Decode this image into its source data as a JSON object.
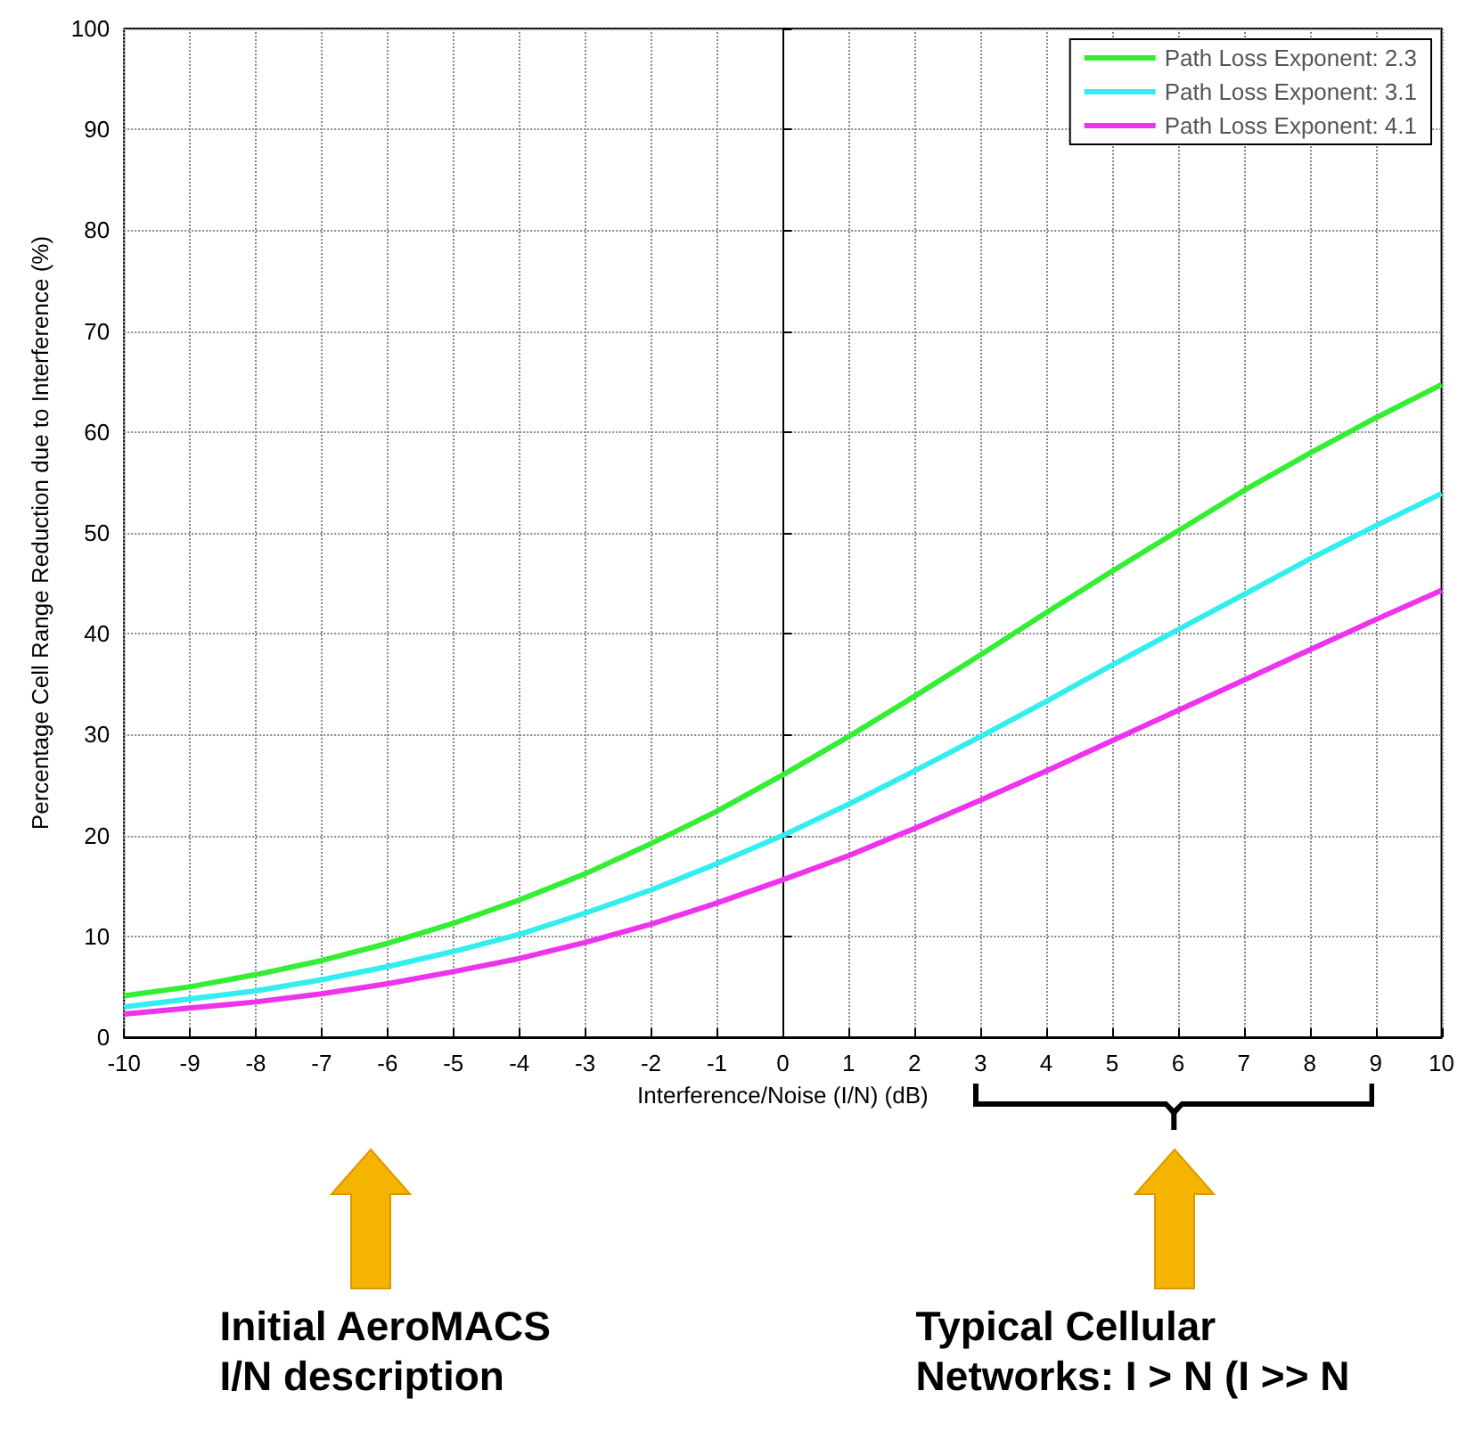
{
  "chart_data": {
    "type": "line",
    "xlabel": "Interference/Noise (I/N) (dB)",
    "ylabel": "Percentage Cell Range Reduction due to Interference (%)",
    "x": [
      -10,
      -9,
      -8,
      -7,
      -6,
      -5,
      -4,
      -3,
      -2,
      -1,
      0,
      1,
      2,
      3,
      4,
      5,
      6,
      7,
      8,
      9,
      10
    ],
    "series": [
      {
        "name": "Path Loss Exponent: 2.3",
        "color": "#33ee33",
        "values": [
          4.1,
          5.0,
          6.2,
          7.6,
          9.3,
          11.3,
          13.6,
          16.2,
          19.2,
          22.4,
          26.0,
          29.8,
          33.8,
          37.9,
          42.1,
          46.2,
          50.2,
          54.2,
          57.9,
          61.4,
          64.7
        ]
      },
      {
        "name": "Path Loss Exponent: 3.1",
        "color": "#33eeee",
        "values": [
          3.0,
          3.8,
          4.6,
          5.7,
          7.0,
          8.5,
          10.2,
          12.3,
          14.6,
          17.2,
          20.0,
          23.1,
          26.4,
          29.8,
          33.3,
          36.9,
          40.4,
          43.9,
          47.4,
          50.7,
          53.9
        ]
      },
      {
        "name": "Path Loss Exponent: 4.1",
        "color": "#ee33ee",
        "values": [
          2.3,
          2.9,
          3.5,
          4.3,
          5.3,
          6.5,
          7.8,
          9.4,
          11.2,
          13.3,
          15.6,
          18.0,
          20.7,
          23.5,
          26.4,
          29.4,
          32.4,
          35.4,
          38.4,
          41.4,
          44.3
        ]
      }
    ],
    "xlim": [
      -10,
      10
    ],
    "xticks": [
      -10,
      -9,
      -8,
      -7,
      -6,
      -5,
      -4,
      -3,
      -2,
      -1,
      0,
      1,
      2,
      3,
      4,
      5,
      6,
      7,
      8,
      9,
      10
    ],
    "ylim": [
      0,
      100
    ],
    "yticks": [
      0,
      10,
      20,
      30,
      40,
      50,
      60,
      70,
      80,
      90,
      100
    ],
    "grid": true,
    "legend": "top right",
    "marker": "none",
    "line_style": "solid",
    "annotations": [
      "Initial AeroMACS\nI/N description",
      "Typical Cellular\nNetworks: I > N (I >> N"
    ]
  }
}
